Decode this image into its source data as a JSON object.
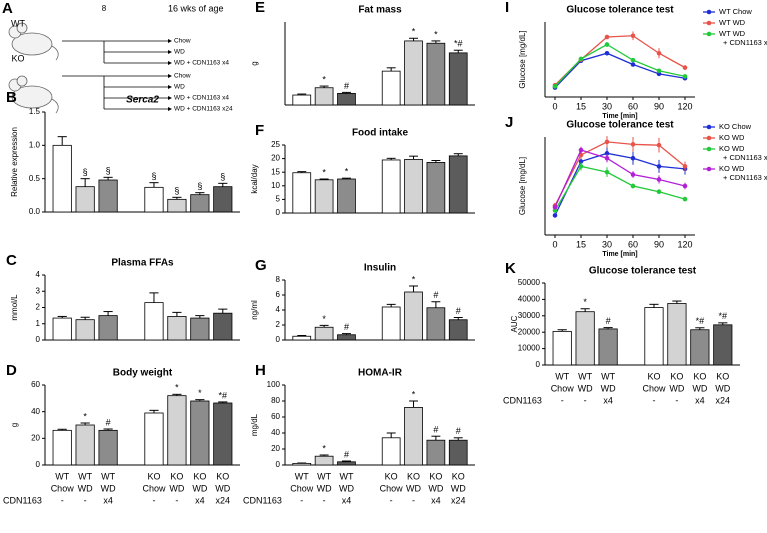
{
  "diagram": {
    "panel": "A",
    "start_week": 8,
    "end_label": "16 wks of age",
    "groups": [
      {
        "label": "WT",
        "arms": [
          "Chow",
          "WD",
          "WD + CDN1163 x4"
        ]
      },
      {
        "label": "KO",
        "arms": [
          "Chow",
          "WD",
          "WD + CDN1163 x4",
          "WD + CDN1163 x24"
        ]
      }
    ]
  },
  "chart_data": [
    {
      "type": "bar",
      "panel": "B",
      "title": "Serca2",
      "title_italic": true,
      "ylabel": "Relative expression",
      "ylim": [
        0,
        1.5
      ],
      "yticks": [
        {
          "value": 0,
          "label": "0.0"
        },
        {
          "value": 0.5,
          "label": "0.5"
        },
        {
          "value": 1,
          "label": "1.0"
        },
        {
          "value": 1.5,
          "label": "1.5"
        }
      ],
      "colors": [
        "#ffffff",
        "#d3d3d3",
        "#8c8c8c",
        "#ffffff",
        "#d3d3d3",
        "#8c8c8c",
        "#5c5c5c"
      ],
      "values": [
        1.0,
        0.38,
        0.48,
        0.37,
        0.19,
        0.26,
        0.38
      ],
      "errors": [
        0.13,
        0.12,
        0.04,
        0.07,
        0.03,
        0.03,
        0.05
      ],
      "annotations": [
        null,
        "§",
        "§",
        "§",
        "§",
        "§",
        "§"
      ]
    },
    {
      "type": "bar",
      "panel": "C",
      "title": "Plasma FFAs",
      "ylabel": "mmol/L",
      "ylim": [
        0,
        4
      ],
      "yticks": [
        0,
        1,
        2,
        3,
        4
      ],
      "colors": [
        "#ffffff",
        "#d3d3d3",
        "#8c8c8c",
        "#ffffff",
        "#d3d3d3",
        "#8c8c8c",
        "#5c5c5c"
      ],
      "values": [
        1.35,
        1.25,
        1.5,
        2.3,
        1.45,
        1.35,
        1.65
      ],
      "errors": [
        0.1,
        0.15,
        0.25,
        0.6,
        0.25,
        0.15,
        0.25
      ],
      "annotations": [
        null,
        null,
        null,
        null,
        null,
        null,
        null
      ]
    },
    {
      "type": "bar",
      "panel": "D",
      "title": "Body weight",
      "ylabel": "g",
      "ylim": [
        0,
        60
      ],
      "yticks": [
        0,
        20,
        40,
        60
      ],
      "colors": [
        "#ffffff",
        "#d3d3d3",
        "#8c8c8c",
        "#ffffff",
        "#d3d3d3",
        "#8c8c8c",
        "#5c5c5c"
      ],
      "values": [
        26,
        30,
        26,
        39,
        52,
        48,
        46.5
      ],
      "errors": [
        0.8,
        1.5,
        1,
        2,
        1,
        1,
        0.8
      ],
      "annotations": [
        null,
        "*",
        "#",
        null,
        "*",
        "*",
        "*#"
      ],
      "x_label_rows": [
        [
          "WT",
          "WT",
          "WT",
          "KO",
          "KO",
          "KO",
          "KO"
        ],
        [
          "Chow",
          "WD",
          "WD",
          "Chow",
          "WD",
          "WD",
          "WD"
        ],
        [
          "-",
          "-",
          "x4",
          "-",
          "-",
          "x4",
          "x24"
        ]
      ],
      "x_row_title": "CDN1163"
    },
    {
      "type": "bar",
      "panel": "E",
      "title": "Fat mass",
      "ylabel": "g",
      "ylim": [
        0,
        25
      ],
      "colors": [
        "#ffffff",
        "#d3d3d3",
        "#5c5c5c",
        "#ffffff",
        "#d3d3d3",
        "#8c8c8c",
        "#5c5c5c"
      ],
      "values": [
        3,
        5.2,
        3.5,
        10.2,
        19.3,
        18.6,
        15.7
      ],
      "errors": [
        0.3,
        0.5,
        0.3,
        1,
        0.8,
        0.7,
        0.8
      ],
      "annotations": [
        null,
        "*",
        "#",
        null,
        "*",
        "*",
        "*#"
      ]
    },
    {
      "type": "bar",
      "panel": "F",
      "title": "Food intake",
      "ylabel": "kcal/day",
      "ylim": [
        0,
        25
      ],
      "yticks": [
        0,
        5,
        10,
        15,
        20,
        25
      ],
      "colors": [
        "#ffffff",
        "#d3d3d3",
        "#8c8c8c",
        "#ffffff",
        "#d3d3d3",
        "#8c8c8c",
        "#5c5c5c"
      ],
      "values": [
        14.8,
        12.2,
        12.5,
        19.5,
        19.7,
        18.6,
        21
      ],
      "errors": [
        0.4,
        0.3,
        0.3,
        0.6,
        1.2,
        0.7,
        0.8
      ],
      "annotations": [
        null,
        "*",
        "*",
        null,
        null,
        null,
        null
      ]
    },
    {
      "type": "bar",
      "panel": "G",
      "title": "Insulin",
      "ylabel": "ng/ml",
      "ylim": [
        0,
        8
      ],
      "yticks": [
        0,
        2,
        4,
        6,
        8
      ],
      "colors": [
        "#ffffff",
        "#d3d3d3",
        "#5c5c5c",
        "#ffffff",
        "#d3d3d3",
        "#8c8c8c",
        "#5c5c5c"
      ],
      "values": [
        0.5,
        1.7,
        0.7,
        4.4,
        6.4,
        4.3,
        2.7
      ],
      "errors": [
        0.1,
        0.25,
        0.15,
        0.35,
        0.8,
        0.8,
        0.3
      ],
      "annotations": [
        null,
        "*",
        "#",
        null,
        "*",
        "#",
        "#"
      ]
    },
    {
      "type": "bar",
      "panel": "H",
      "title": "HOMA-IR",
      "ylabel": "mg/dL",
      "ylim": [
        0,
        100
      ],
      "yticks": [
        0,
        20,
        40,
        60,
        80,
        100
      ],
      "colors": [
        "#ffffff",
        "#d3d3d3",
        "#5c5c5c",
        "#ffffff",
        "#d3d3d3",
        "#8c8c8c",
        "#5c5c5c"
      ],
      "values": [
        2,
        11,
        4,
        34,
        72,
        31,
        31
      ],
      "errors": [
        0.5,
        1.5,
        1,
        6,
        8,
        5,
        3
      ],
      "annotations": [
        null,
        "*",
        "#",
        null,
        "*",
        "#",
        "#"
      ],
      "x_label_rows": [
        [
          "WT",
          "WT",
          "WT",
          "KO",
          "KO",
          "KO",
          "KO"
        ],
        [
          "Chow",
          "WD",
          "WD",
          "Chow",
          "WD",
          "WD",
          "WD"
        ],
        [
          "-",
          "-",
          "x4",
          "-",
          "-",
          "x4",
          "x24"
        ]
      ],
      "x_row_title": "CDN1163"
    },
    {
      "type": "line",
      "panel": "I",
      "title": "Glucose tolerance test",
      "ylabel": "Glucose [mg/dL]",
      "xlabel": "Time [min]",
      "categories": [
        "0",
        "15",
        "30",
        "60",
        "90",
        "120"
      ],
      "ylim": [
        0,
        600
      ],
      "series": [
        {
          "name": "WT Chow",
          "color": "#1f2fd6",
          "values": [
            75,
            290,
            350,
            260,
            185,
            150
          ],
          "errors": [
            8,
            15,
            15,
            15,
            12,
            10
          ]
        },
        {
          "name": "WT WD",
          "color": "#e8534a",
          "values": [
            95,
            300,
            480,
            490,
            350,
            235
          ],
          "errors": [
            10,
            20,
            15,
            35,
            40,
            20
          ]
        },
        {
          "name": [
            "WT WD",
            "+ CDN1163 x4"
          ],
          "color": "#22c93a",
          "values": [
            85,
            305,
            420,
            295,
            210,
            165
          ],
          "errors": [
            8,
            15,
            20,
            15,
            12,
            10
          ]
        }
      ]
    },
    {
      "type": "line",
      "panel": "J",
      "title": "Glucose tolerance test",
      "ylabel": "Glucose [mg/dL]",
      "xlabel": "Time [min]",
      "categories": [
        "0",
        "15",
        "30",
        "60",
        "90",
        "120"
      ],
      "ylim": [
        0,
        600
      ],
      "series": [
        {
          "name": "KO Chow",
          "color": "#1f2fd6",
          "values": [
            120,
            450,
            500,
            470,
            420,
            405
          ],
          "errors": [
            10,
            30,
            40,
            40,
            40,
            35
          ]
        },
        {
          "name": "KO WD",
          "color": "#e8534a",
          "values": [
            180,
            490,
            570,
            555,
            550,
            420
          ],
          "errors": [
            15,
            25,
            35,
            45,
            45,
            30
          ]
        },
        {
          "name": [
            "KO WD",
            "+ CDN1163 x4"
          ],
          "color": "#22c93a",
          "values": [
            150,
            420,
            385,
            300,
            265,
            220
          ],
          "errors": [
            10,
            25,
            30,
            15,
            15,
            10
          ]
        },
        {
          "name": [
            "KO WD",
            "+ CDN1163 x24"
          ],
          "color": "#b31fd6",
          "values": [
            170,
            520,
            470,
            370,
            340,
            300
          ],
          "errors": [
            12,
            20,
            25,
            20,
            25,
            20
          ]
        }
      ]
    },
    {
      "type": "bar",
      "panel": "K",
      "title": "Glucose tolerance test",
      "ylabel": "AUC",
      "ylim": [
        0,
        50000
      ],
      "yticks": [
        0,
        10000,
        20000,
        30000,
        40000,
        50000
      ],
      "colors": [
        "#ffffff",
        "#d3d3d3",
        "#8c8c8c",
        "#ffffff",
        "#d3d3d3",
        "#8c8c8c",
        "#5c5c5c"
      ],
      "values": [
        20500,
        32500,
        22000,
        35000,
        37500,
        21500,
        24500
      ],
      "errors": [
        1000,
        1800,
        800,
        2000,
        1500,
        1200,
        1200
      ],
      "annotations": [
        null,
        "*",
        "#",
        null,
        null,
        "*#",
        "*#"
      ],
      "x_label_rows": [
        [
          "WT",
          "WT",
          "WT",
          "KO",
          "KO",
          "KO",
          "KO"
        ],
        [
          "Chow",
          "WD",
          "WD",
          "Chow",
          "WD",
          "WD",
          "WD"
        ],
        [
          "-",
          "-",
          "x4",
          "-",
          "-",
          "x4",
          "x24"
        ]
      ],
      "x_row_title": "CDN1163"
    }
  ]
}
